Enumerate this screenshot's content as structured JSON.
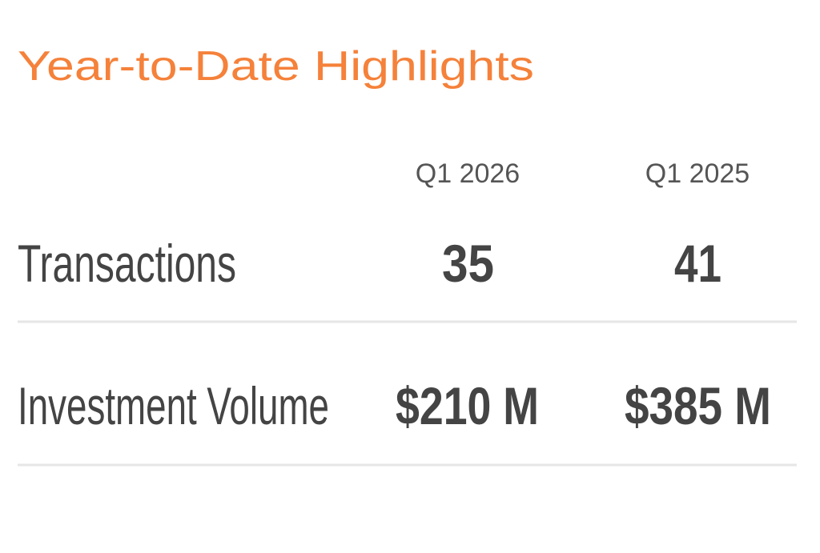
{
  "header": {
    "title": "Year-to-Date Highlights"
  },
  "table": {
    "columns": [
      "Q1 2026",
      "Q1 2025"
    ],
    "rows": [
      [
        "Transactions",
        35,
        41
      ],
      [
        "Investment Volume",
        "$210 M",
        "$385 M"
      ]
    ]
  }
}
